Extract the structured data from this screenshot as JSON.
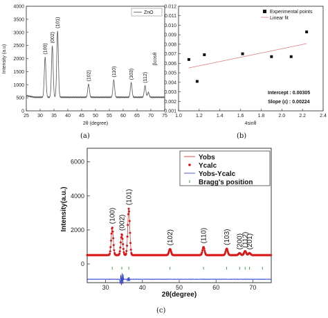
{
  "chart_data": [
    {
      "type": "line",
      "panel_label": "(a)",
      "xlabel": "2θ (degree)",
      "ylabel": "Intensity (a.u)",
      "xlim": [
        25,
        75
      ],
      "ylim": [
        0,
        4000
      ],
      "xticks": [
        25,
        30,
        35,
        40,
        45,
        50,
        55,
        60,
        65,
        70,
        75
      ],
      "yticks": [
        0,
        500,
        1000,
        1500,
        2000,
        2500,
        3000,
        3500,
        4000
      ],
      "legend": {
        "position": "top-right",
        "entries": [
          "ZnO"
        ]
      },
      "baseline": 520,
      "peaks": [
        {
          "x": 31.8,
          "y": 2050,
          "label": "(100)"
        },
        {
          "x": 34.4,
          "y": 2480,
          "label": "(002)"
        },
        {
          "x": 36.3,
          "y": 3050,
          "label": "(101)"
        },
        {
          "x": 47.5,
          "y": 1020,
          "label": "(102)"
        },
        {
          "x": 56.6,
          "y": 1180,
          "label": "(110)"
        },
        {
          "x": 62.9,
          "y": 1080,
          "label": "(103)"
        },
        {
          "x": 67.9,
          "y": 960,
          "label": "(112)"
        },
        {
          "x": 69.1,
          "y": 700,
          "label": ""
        }
      ],
      "color": "#555555"
    },
    {
      "type": "scatter",
      "panel_label": "(b)",
      "xlabel": "4sinθ",
      "ylabel": "βcosθ",
      "xlim": [
        1.0,
        2.4
      ],
      "ylim": [
        0.001,
        0.012
      ],
      "xticks": [
        "1.0",
        "1.2",
        "1.4",
        "1.6",
        "1.8",
        "2.0",
        "2.2",
        "2.4"
      ],
      "yticks": [
        "0.001",
        "0.002",
        "0.003",
        "0.004",
        "0.005",
        "0.006",
        "0.007",
        "0.008",
        "0.009",
        "0.010",
        "0.011",
        "0.012"
      ],
      "legend": {
        "position": "top-right",
        "entries": [
          "Experimental points",
          "Linear fit"
        ]
      },
      "points": [
        {
          "x": 1.1,
          "y": 0.0064
        },
        {
          "x": 1.18,
          "y": 0.0041
        },
        {
          "x": 1.25,
          "y": 0.0069
        },
        {
          "x": 1.62,
          "y": 0.007
        },
        {
          "x": 1.9,
          "y": 0.0067
        },
        {
          "x": 2.09,
          "y": 0.0067
        },
        {
          "x": 2.24,
          "y": 0.0093
        }
      ],
      "fit": {
        "x": [
          1.1,
          2.24
        ],
        "y": [
          0.00551,
          0.00807
        ]
      },
      "annotations": [
        "Intercept : 0.00305",
        "Slope (ε) : 0.00224"
      ],
      "fit_color": "#e08a8a"
    },
    {
      "type": "line",
      "panel_label": "(c)",
      "xlabel": "2θ(degree)",
      "ylabel": "Intensity(a.u.)",
      "xlim": [
        25,
        75
      ],
      "ylim": [
        -1100,
        6800
      ],
      "xticks": [
        30,
        40,
        50,
        60,
        70
      ],
      "yticks": [
        0,
        2000,
        4000,
        6000
      ],
      "legend": {
        "position": "top-right",
        "entries": [
          "Yobs",
          "Ycalc",
          "Yobs-Ycalc",
          "Bragg's position"
        ]
      },
      "baseline": 520,
      "peaks": [
        {
          "x": 31.8,
          "y": 2150,
          "label": "(100)"
        },
        {
          "x": 34.4,
          "y": 1750,
          "label": "(002)"
        },
        {
          "x": 36.3,
          "y": 3250,
          "label": "(101)"
        },
        {
          "x": 47.5,
          "y": 880,
          "label": "(102)"
        },
        {
          "x": 56.6,
          "y": 1000,
          "label": "(110)"
        },
        {
          "x": 62.9,
          "y": 900,
          "label": "(103)"
        },
        {
          "x": 66.4,
          "y": 640,
          "label": "(200)"
        },
        {
          "x": 67.9,
          "y": 760,
          "label": "(112)"
        },
        {
          "x": 69.1,
          "y": 640,
          "label": "(201)"
        }
      ],
      "bragg_positions": [
        31.8,
        34.4,
        36.3,
        47.5,
        56.6,
        62.9,
        66.4,
        67.9,
        69.1,
        72.6
      ],
      "bragg_level": -250,
      "difference_level": -900,
      "colors": {
        "yobs": "#cc2222",
        "ycalc": "#e01010",
        "diff": "#2233cc",
        "bragg": "#2a9a2a"
      }
    }
  ]
}
